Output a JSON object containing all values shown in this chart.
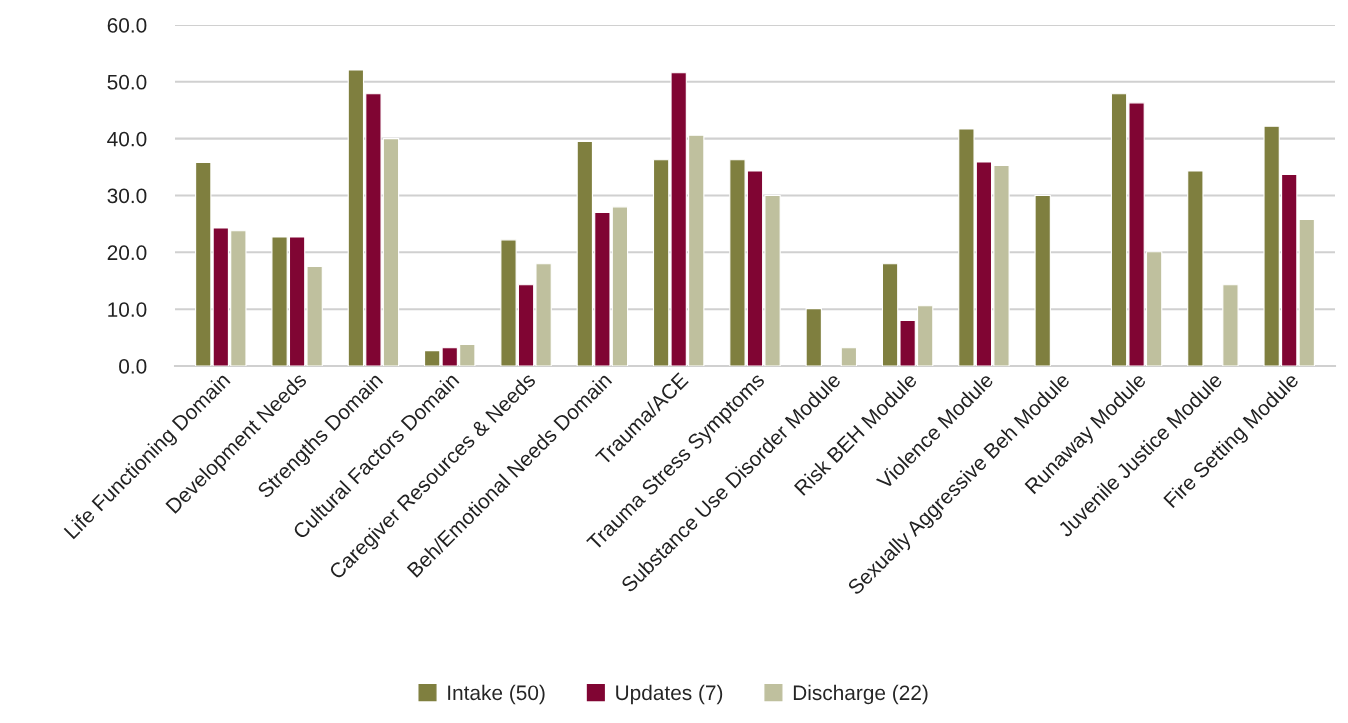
{
  "chart_data": {
    "type": "bar",
    "categories": [
      "Life Functioning Domain",
      "Development Needs",
      "Strengths Domain",
      "Cultural Factors Domain",
      "Caregiver Resources & Needs",
      "Beh/Emotional Needs Domain",
      "Trauma/ACE",
      "Trauma Stress Symptoms",
      "Substance Use Disorder Module",
      "Risk BEH Module",
      "Violence Module",
      "Sexually Aggressive Beh Module",
      "Runaway Module",
      "Juvenile Justice Module",
      "Fire Setting Module"
    ],
    "series": [
      {
        "name": "Intake (50)",
        "color": "#7f7f3f",
        "values": [
          35.8,
          22.7,
          52.1,
          2.7,
          22.2,
          39.5,
          36.3,
          36.3,
          10.1,
          18.0,
          41.7,
          30.0,
          47.9,
          34.3,
          42.2
        ]
      },
      {
        "name": "Updates (7)",
        "color": "#800533",
        "values": [
          24.3,
          22.7,
          47.9,
          3.2,
          14.3,
          27.0,
          51.6,
          34.3,
          null,
          8.0,
          35.9,
          null,
          46.3,
          null,
          33.7
        ]
      },
      {
        "name": "Discharge (22)",
        "color": "#bfc09e",
        "values": [
          23.8,
          17.5,
          40.0,
          3.8,
          18.0,
          28.0,
          40.6,
          30.0,
          3.2,
          10.6,
          35.3,
          null,
          20.1,
          14.3,
          25.8
        ]
      }
    ],
    "ylim": [
      0,
      60
    ],
    "yticks": [
      {
        "value": 0,
        "label": "0.0"
      },
      {
        "value": 10,
        "label": "10.0"
      },
      {
        "value": 20,
        "label": "20.0"
      },
      {
        "value": 30,
        "label": "30.0"
      },
      {
        "value": 40,
        "label": "40.0"
      },
      {
        "value": 50,
        "label": "50.0"
      },
      {
        "value": 60,
        "label": "60.0"
      }
    ],
    "grid": "y",
    "legend": "bottom"
  }
}
